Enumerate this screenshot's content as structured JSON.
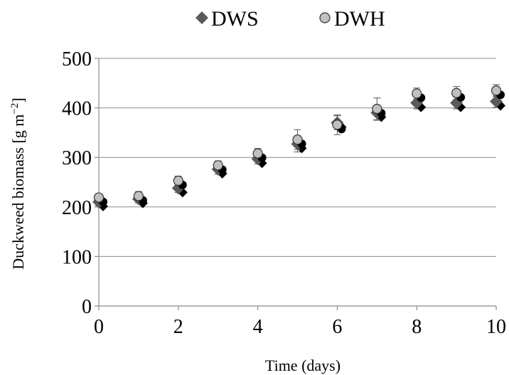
{
  "chart_data": {
    "type": "scatter",
    "title": "",
    "xlabel": "Time (days)",
    "ylabel": "Duckweed biomass [g m",
    "ylabel_sup": "−2",
    "ylabel_end": "]",
    "xlim": [
      0,
      10
    ],
    "ylim": [
      0,
      500
    ],
    "x_ticks": [
      0,
      2,
      4,
      6,
      8,
      10
    ],
    "y_ticks": [
      0,
      100,
      200,
      300,
      400,
      500
    ],
    "grid": "horizontal",
    "legend_position": "top",
    "series": [
      {
        "name": "DWS",
        "marker": "diamond",
        "color": "#5a5a5a",
        "shadow_color": "#000000",
        "x": [
          0,
          1,
          2,
          3,
          4,
          5,
          6,
          7,
          8,
          9,
          10
        ],
        "y": [
          210,
          216,
          238,
          276,
          297,
          327,
          370,
          390,
          410,
          410,
          413
        ],
        "error": [
          8,
          8,
          9,
          10,
          10,
          16,
          14,
          15,
          12,
          12,
          12
        ]
      },
      {
        "name": "DWH",
        "marker": "circle",
        "color": "#c0c0c0",
        "shadow_color": "#000000",
        "x": [
          0,
          1,
          2,
          3,
          4,
          5,
          6,
          7,
          8,
          9,
          10
        ],
        "y": [
          219,
          222,
          253,
          284,
          308,
          336,
          366,
          398,
          429,
          430,
          435
        ],
        "error": [
          7,
          9,
          9,
          9,
          10,
          20,
          20,
          22,
          11,
          13,
          12
        ]
      }
    ]
  }
}
